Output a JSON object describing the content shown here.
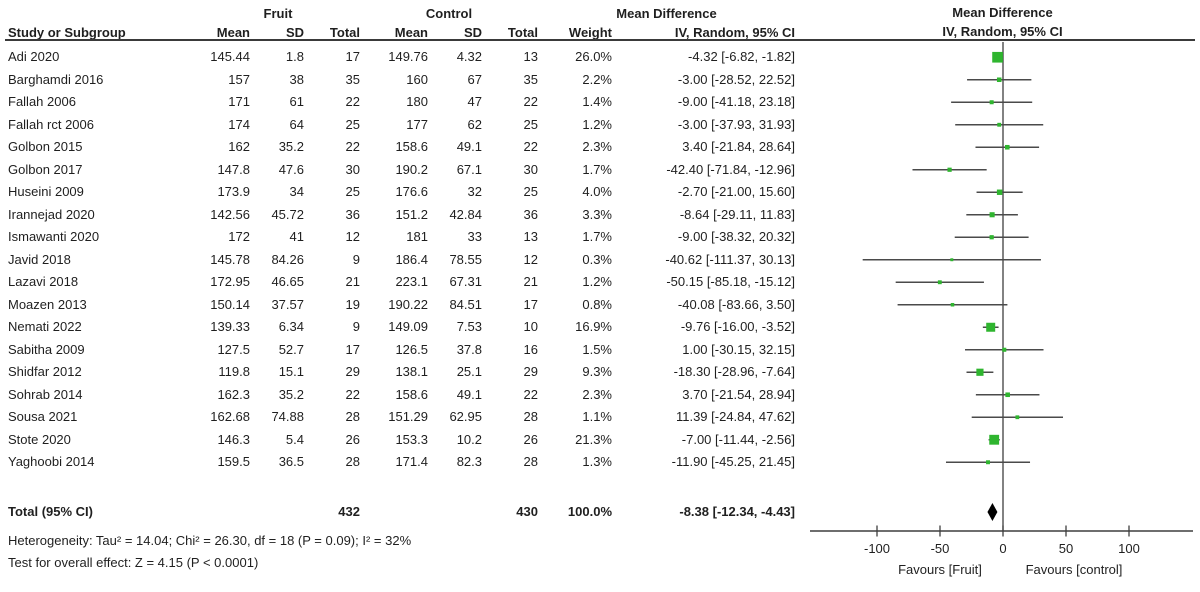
{
  "header": {
    "group_fruit": "Fruit",
    "group_control": "Control",
    "mean_difference": "Mean Difference",
    "study_col": "Study or Subgroup",
    "mean": "Mean",
    "sd": "SD",
    "total": "Total",
    "weight": "Weight",
    "iv_label": "IV, Random, 95% CI"
  },
  "footnotes": {
    "heterogeneity": "Heterogeneity: Tau² = 14.04; Chi² = 26.30, df = 18 (P = 0.09); I² = 32%",
    "overall_effect": "Test for overall effect: Z = 4.15 (P < 0.0001)"
  },
  "chart_data": {
    "type": "forest",
    "title": "Mean Difference",
    "effect_model": "IV, Random, 95% CI",
    "axis": {
      "ticks": [
        -100,
        -50,
        0,
        50,
        100
      ],
      "xlim": [
        -153,
        151
      ],
      "favours_left": "Favours [Fruit]",
      "favours_right": "Favours [control]"
    },
    "colors": {
      "marker": "#2fb52f",
      "line": "#4a4a4a",
      "axis": "#3f3f3f",
      "diamond": "#000000",
      "text": "#1f1f1f"
    },
    "studies": [
      {
        "name": "Adi 2020",
        "f_mean": "145.44",
        "f_sd": "1.8",
        "f_n": "17",
        "c_mean": "149.76",
        "c_sd": "4.32",
        "c_n": "13",
        "weight": "26.0%",
        "ci_text": "-4.32 [-6.82, -1.82]",
        "md": -4.32,
        "lo": -6.82,
        "hi": -1.82,
        "w_pct": 26.0
      },
      {
        "name": "Barghamdi 2016",
        "f_mean": "157",
        "f_sd": "38",
        "f_n": "35",
        "c_mean": "160",
        "c_sd": "67",
        "c_n": "35",
        "weight": "2.2%",
        "ci_text": "-3.00 [-28.52, 22.52]",
        "md": -3.0,
        "lo": -28.52,
        "hi": 22.52,
        "w_pct": 2.2
      },
      {
        "name": "Fallah 2006",
        "f_mean": "171",
        "f_sd": "61",
        "f_n": "22",
        "c_mean": "180",
        "c_sd": "47",
        "c_n": "22",
        "weight": "1.4%",
        "ci_text": "-9.00 [-41.18, 23.18]",
        "md": -9.0,
        "lo": -41.18,
        "hi": 23.18,
        "w_pct": 1.4
      },
      {
        "name": "Fallah rct 2006",
        "f_mean": "174",
        "f_sd": "64",
        "f_n": "25",
        "c_mean": "177",
        "c_sd": "62",
        "c_n": "25",
        "weight": "1.2%",
        "ci_text": "-3.00 [-37.93, 31.93]",
        "md": -3.0,
        "lo": -37.93,
        "hi": 31.93,
        "w_pct": 1.2
      },
      {
        "name": "Golbon 2015",
        "f_mean": "162",
        "f_sd": "35.2",
        "f_n": "22",
        "c_mean": "158.6",
        "c_sd": "49.1",
        "c_n": "22",
        "weight": "2.3%",
        "ci_text": "3.40 [-21.84, 28.64]",
        "md": 3.4,
        "lo": -21.84,
        "hi": 28.64,
        "w_pct": 2.3
      },
      {
        "name": "Golbon 2017",
        "f_mean": "147.8",
        "f_sd": "47.6",
        "f_n": "30",
        "c_mean": "190.2",
        "c_sd": "67.1",
        "c_n": "30",
        "weight": "1.7%",
        "ci_text": "-42.40 [-71.84, -12.96]",
        "md": -42.4,
        "lo": -71.84,
        "hi": -12.96,
        "w_pct": 1.7
      },
      {
        "name": "Huseini 2009",
        "f_mean": "173.9",
        "f_sd": "34",
        "f_n": "25",
        "c_mean": "176.6",
        "c_sd": "32",
        "c_n": "25",
        "weight": "4.0%",
        "ci_text": "-2.70 [-21.00, 15.60]",
        "md": -2.7,
        "lo": -21.0,
        "hi": 15.6,
        "w_pct": 4.0
      },
      {
        "name": "Irannejad 2020",
        "f_mean": "142.56",
        "f_sd": "45.72",
        "f_n": "36",
        "c_mean": "151.2",
        "c_sd": "42.84",
        "c_n": "36",
        "weight": "3.3%",
        "ci_text": "-8.64 [-29.11, 11.83]",
        "md": -8.64,
        "lo": -29.11,
        "hi": 11.83,
        "w_pct": 3.3
      },
      {
        "name": "Ismawanti 2020",
        "f_mean": "172",
        "f_sd": "41",
        "f_n": "12",
        "c_mean": "181",
        "c_sd": "33",
        "c_n": "13",
        "weight": "1.7%",
        "ci_text": "-9.00 [-38.32, 20.32]",
        "md": -9.0,
        "lo": -38.32,
        "hi": 20.32,
        "w_pct": 1.7
      },
      {
        "name": "Javid 2018",
        "f_mean": "145.78",
        "f_sd": "84.26",
        "f_n": "9",
        "c_mean": "186.4",
        "c_sd": "78.55",
        "c_n": "12",
        "weight": "0.3%",
        "ci_text": "-40.62 [-111.37, 30.13]",
        "md": -40.62,
        "lo": -111.37,
        "hi": 30.13,
        "w_pct": 0.3
      },
      {
        "name": "Lazavi 2018",
        "f_mean": "172.95",
        "f_sd": "46.65",
        "f_n": "21",
        "c_mean": "223.1",
        "c_sd": "67.31",
        "c_n": "21",
        "weight": "1.2%",
        "ci_text": "-50.15 [-85.18, -15.12]",
        "md": -50.15,
        "lo": -85.18,
        "hi": -15.12,
        "w_pct": 1.2
      },
      {
        "name": "Moazen 2013",
        "f_mean": "150.14",
        "f_sd": "37.57",
        "f_n": "19",
        "c_mean": "190.22",
        "c_sd": "84.51",
        "c_n": "17",
        "weight": "0.8%",
        "ci_text": "-40.08 [-83.66, 3.50]",
        "md": -40.08,
        "lo": -83.66,
        "hi": 3.5,
        "w_pct": 0.8
      },
      {
        "name": "Nemati 2022",
        "f_mean": "139.33",
        "f_sd": "6.34",
        "f_n": "9",
        "c_mean": "149.09",
        "c_sd": "7.53",
        "c_n": "10",
        "weight": "16.9%",
        "ci_text": "-9.76 [-16.00, -3.52]",
        "md": -9.76,
        "lo": -16.0,
        "hi": -3.52,
        "w_pct": 16.9
      },
      {
        "name": "Sabitha 2009",
        "f_mean": "127.5",
        "f_sd": "52.7",
        "f_n": "17",
        "c_mean": "126.5",
        "c_sd": "37.8",
        "c_n": "16",
        "weight": "1.5%",
        "ci_text": "1.00 [-30.15, 32.15]",
        "md": 1.0,
        "lo": -30.15,
        "hi": 32.15,
        "w_pct": 1.5
      },
      {
        "name": "Shidfar 2012",
        "f_mean": "119.8",
        "f_sd": "15.1",
        "f_n": "29",
        "c_mean": "138.1",
        "c_sd": "25.1",
        "c_n": "29",
        "weight": "9.3%",
        "ci_text": "-18.30 [-28.96, -7.64]",
        "md": -18.3,
        "lo": -28.96,
        "hi": -7.64,
        "w_pct": 9.3
      },
      {
        "name": "Sohrab 2014",
        "f_mean": "162.3",
        "f_sd": "35.2",
        "f_n": "22",
        "c_mean": "158.6",
        "c_sd": "49.1",
        "c_n": "22",
        "weight": "2.3%",
        "ci_text": "3.70 [-21.54, 28.94]",
        "md": 3.7,
        "lo": -21.54,
        "hi": 28.94,
        "w_pct": 2.3
      },
      {
        "name": "Sousa 2021",
        "f_mean": "162.68",
        "f_sd": "74.88",
        "f_n": "28",
        "c_mean": "151.29",
        "c_sd": "62.95",
        "c_n": "28",
        "weight": "1.1%",
        "ci_text": "11.39 [-24.84, 47.62]",
        "md": 11.39,
        "lo": -24.84,
        "hi": 47.62,
        "w_pct": 1.1
      },
      {
        "name": "Stote 2020",
        "f_mean": "146.3",
        "f_sd": "5.4",
        "f_n": "26",
        "c_mean": "153.3",
        "c_sd": "10.2",
        "c_n": "26",
        "weight": "21.3%",
        "ci_text": "-7.00 [-11.44, -2.56]",
        "md": -7.0,
        "lo": -11.44,
        "hi": -2.56,
        "w_pct": 21.3
      },
      {
        "name": "Yaghoobi 2014",
        "f_mean": "159.5",
        "f_sd": "36.5",
        "f_n": "28",
        "c_mean": "171.4",
        "c_sd": "82.3",
        "c_n": "28",
        "weight": "1.3%",
        "ci_text": "-11.90 [-45.25, 21.45]",
        "md": -11.9,
        "lo": -45.25,
        "hi": 21.45,
        "w_pct": 1.3
      }
    ],
    "total": {
      "label": "Total (95% CI)",
      "f_n": "432",
      "c_n": "430",
      "weight": "100.0%",
      "ci_text": "-8.38 [-12.34, -4.43]",
      "md": -8.38,
      "lo": -12.34,
      "hi": -4.43
    }
  }
}
